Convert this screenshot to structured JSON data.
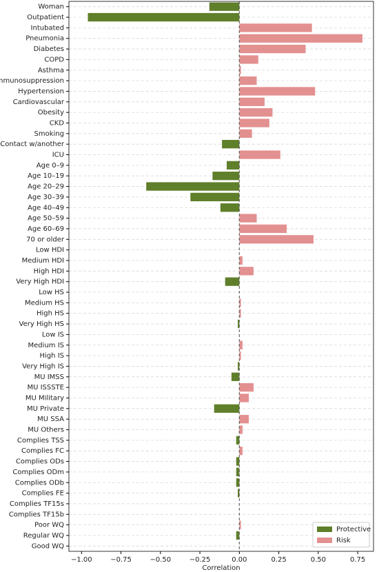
{
  "chart_data": {
    "type": "barh",
    "x_label": "Correlation",
    "categories": [
      "Woman",
      "Outpatient",
      "Intubated",
      "Pneumonia",
      "Diabetes",
      "COPD",
      "Asthma",
      "Immunosuppression",
      "Hypertension",
      "Cardiovascular",
      "Obesity",
      "CKD",
      "Smoking",
      "Contact w/another",
      "ICU",
      "Age 0–9",
      "Age 10–19",
      "Age 20–29",
      "Age 30–39",
      "Age 40–49",
      "Age 50–59",
      "Age 60–69",
      "70 or older",
      "Low HDI",
      "Medium HDI",
      "High HDI",
      "Very High HDI",
      "Low HS",
      "Medium HS",
      "High HS",
      "Very High HS",
      "Low IS",
      "Medium IS",
      "High IS",
      "Very High IS",
      "MU IMSS",
      "MU ISSSTE",
      "MU Military",
      "MU Private",
      "MU SSA",
      "MU Others",
      "Complies TSS",
      "Complies FC",
      "Complies ODs",
      "Complies ODm",
      "Complies ODb",
      "Complies FE",
      "Complies TF15s",
      "Complies TF15b",
      "Poor WQ",
      "Regular WQ",
      "Good WQ"
    ],
    "series": [
      {
        "name": "Protective",
        "color": "#5f7f2a",
        "values": [
          -0.19,
          -0.96,
          null,
          null,
          null,
          null,
          null,
          null,
          null,
          null,
          null,
          null,
          null,
          -0.11,
          null,
          -0.08,
          -0.17,
          -0.59,
          -0.31,
          -0.12,
          null,
          null,
          null,
          null,
          null,
          null,
          -0.09,
          null,
          null,
          null,
          -0.01,
          null,
          null,
          null,
          -0.01,
          -0.05,
          null,
          null,
          -0.16,
          null,
          null,
          -0.02,
          null,
          -0.02,
          -0.02,
          -0.02,
          -0.01,
          null,
          null,
          null,
          -0.02,
          null
        ]
      },
      {
        "name": "Risk",
        "color": "#e39090",
        "values": [
          null,
          null,
          0.46,
          0.78,
          0.42,
          0.12,
          0.01,
          0.11,
          0.48,
          0.16,
          0.21,
          0.19,
          0.08,
          null,
          0.26,
          null,
          null,
          null,
          null,
          null,
          0.11,
          0.3,
          0.47,
          null,
          0.02,
          0.09,
          null,
          null,
          0.01,
          0.01,
          null,
          null,
          0.02,
          0.01,
          null,
          null,
          0.09,
          0.06,
          null,
          0.06,
          0.02,
          null,
          0.02,
          null,
          null,
          null,
          null,
          null,
          null,
          0.01,
          null,
          null
        ]
      }
    ],
    "xlim": [
      -1.08,
      0.85
    ],
    "xticks": [
      {
        "value": -1,
        "label": "−1.00"
      },
      {
        "value": -0.75,
        "label": "−0.75"
      },
      {
        "value": -0.5,
        "label": "−0.50"
      },
      {
        "value": -0.25,
        "label": "−0.25"
      },
      {
        "value": 0,
        "label": "0.00"
      },
      0.25,
      {
        "value": 0.5,
        "label": "0.50"
      },
      0.75
    ],
    "grid": true,
    "legend": "lower right"
  }
}
